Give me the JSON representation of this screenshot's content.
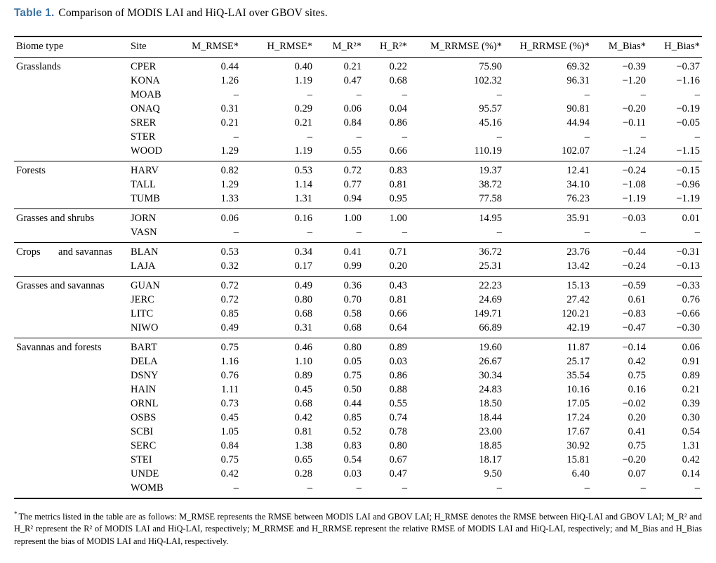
{
  "title": {
    "label": "Table 1.",
    "caption": "Comparison of MODIS LAI and HiQ-LAI over GBOV sites."
  },
  "colors": {
    "title_accent": "#3d73a3",
    "text": "#000000",
    "rule": "#000000",
    "background": "#ffffff"
  },
  "table": {
    "columns": [
      "Biome type",
      "Site",
      "M_RMSE*",
      "H_RMSE*",
      "M_R²*",
      "H_R²*",
      "M_RRMSE (%)*",
      "H_RRMSE (%)*",
      "M_Bias*",
      "H_Bias*"
    ],
    "missing_marker": "–",
    "sections": [
      {
        "biome": "Grasslands",
        "rows": [
          {
            "site": "CPER",
            "values": [
              "0.44",
              "0.40",
              "0.21",
              "0.22",
              "75.90",
              "69.32",
              "−0.39",
              "−0.37"
            ]
          },
          {
            "site": "KONA",
            "values": [
              "1.26",
              "1.19",
              "0.47",
              "0.68",
              "102.32",
              "96.31",
              "−1.20",
              "−1.16"
            ]
          },
          {
            "site": "MOAB",
            "values": [
              "–",
              "–",
              "–",
              "–",
              "–",
              "–",
              "–",
              "–"
            ]
          },
          {
            "site": "ONAQ",
            "values": [
              "0.31",
              "0.29",
              "0.06",
              "0.04",
              "95.57",
              "90.81",
              "−0.20",
              "−0.19"
            ]
          },
          {
            "site": "SRER",
            "values": [
              "0.21",
              "0.21",
              "0.84",
              "0.86",
              "45.16",
              "44.94",
              "−0.11",
              "−0.05"
            ]
          },
          {
            "site": "STER",
            "values": [
              "–",
              "–",
              "–",
              "–",
              "–",
              "–",
              "–",
              "–"
            ]
          },
          {
            "site": "WOOD",
            "values": [
              "1.29",
              "1.19",
              "0.55",
              "0.66",
              "110.19",
              "102.07",
              "−1.24",
              "−1.15"
            ]
          }
        ]
      },
      {
        "biome": "Forests",
        "rows": [
          {
            "site": "HARV",
            "values": [
              "0.82",
              "0.53",
              "0.72",
              "0.83",
              "19.37",
              "12.41",
              "−0.24",
              "−0.15"
            ]
          },
          {
            "site": "TALL",
            "values": [
              "1.29",
              "1.14",
              "0.77",
              "0.81",
              "38.72",
              "34.10",
              "−1.08",
              "−0.96"
            ]
          },
          {
            "site": "TUMB",
            "values": [
              "1.33",
              "1.31",
              "0.94",
              "0.95",
              "77.58",
              "76.23",
              "−1.19",
              "−1.19"
            ]
          }
        ]
      },
      {
        "biome": "Grasses and shrubs",
        "rows": [
          {
            "site": "JORN",
            "values": [
              "0.06",
              "0.16",
              "1.00",
              "1.00",
              "14.95",
              "35.91",
              "−0.03",
              "0.01"
            ]
          },
          {
            "site": "VASN",
            "values": [
              "–",
              "–",
              "–",
              "–",
              "–",
              "–",
              "–",
              "–"
            ]
          }
        ]
      },
      {
        "biome": "Crops       and savannas",
        "rows": [
          {
            "site": "BLAN",
            "values": [
              "0.53",
              "0.34",
              "0.41",
              "0.71",
              "36.72",
              "23.76",
              "−0.44",
              "−0.31"
            ]
          },
          {
            "site": "LAJA",
            "values": [
              "0.32",
              "0.17",
              "0.99",
              "0.20",
              "25.31",
              "13.42",
              "−0.24",
              "−0.13"
            ]
          }
        ]
      },
      {
        "biome": "Grasses and savannas",
        "rows": [
          {
            "site": "GUAN",
            "values": [
              "0.72",
              "0.49",
              "0.36",
              "0.43",
              "22.23",
              "15.13",
              "−0.59",
              "−0.33"
            ]
          },
          {
            "site": "JERC",
            "values": [
              "0.72",
              "0.80",
              "0.70",
              "0.81",
              "24.69",
              "27.42",
              "0.61",
              "0.76"
            ]
          },
          {
            "site": "LITC",
            "values": [
              "0.85",
              "0.68",
              "0.58",
              "0.66",
              "149.71",
              "120.21",
              "−0.83",
              "−0.66"
            ]
          },
          {
            "site": "NIWO",
            "values": [
              "0.49",
              "0.31",
              "0.68",
              "0.64",
              "66.89",
              "42.19",
              "−0.47",
              "−0.30"
            ]
          }
        ]
      },
      {
        "biome": "Savannas and forests",
        "rows": [
          {
            "site": "BART",
            "values": [
              "0.75",
              "0.46",
              "0.80",
              "0.89",
              "19.60",
              "11.87",
              "−0.14",
              "0.06"
            ]
          },
          {
            "site": "DELA",
            "values": [
              "1.16",
              "1.10",
              "0.05",
              "0.03",
              "26.67",
              "25.17",
              "0.42",
              "0.91"
            ]
          },
          {
            "site": "DSNY",
            "values": [
              "0.76",
              "0.89",
              "0.75",
              "0.86",
              "30.34",
              "35.54",
              "0.75",
              "0.89"
            ]
          },
          {
            "site": "HAIN",
            "values": [
              "1.11",
              "0.45",
              "0.50",
              "0.88",
              "24.83",
              "10.16",
              "0.16",
              "0.21"
            ]
          },
          {
            "site": "ORNL",
            "values": [
              "0.73",
              "0.68",
              "0.44",
              "0.55",
              "18.50",
              "17.05",
              "−0.02",
              "0.39"
            ]
          },
          {
            "site": "OSBS",
            "values": [
              "0.45",
              "0.42",
              "0.85",
              "0.74",
              "18.44",
              "17.24",
              "0.20",
              "0.30"
            ]
          },
          {
            "site": "SCBI",
            "values": [
              "1.05",
              "0.81",
              "0.52",
              "0.78",
              "23.00",
              "17.67",
              "0.41",
              "0.54"
            ]
          },
          {
            "site": "SERC",
            "values": [
              "0.84",
              "1.38",
              "0.83",
              "0.80",
              "18.85",
              "30.92",
              "0.75",
              "1.31"
            ]
          },
          {
            "site": "STEI",
            "values": [
              "0.75",
              "0.65",
              "0.54",
              "0.67",
              "18.17",
              "15.81",
              "−0.20",
              "0.42"
            ]
          },
          {
            "site": "UNDE",
            "values": [
              "0.42",
              "0.28",
              "0.03",
              "0.47",
              "9.50",
              "6.40",
              "0.07",
              "0.14"
            ]
          },
          {
            "site": "WOMB",
            "values": [
              "–",
              "–",
              "–",
              "–",
              "–",
              "–",
              "–",
              "–"
            ]
          }
        ]
      }
    ]
  },
  "footnote": {
    "marker": "*",
    "text": "The metrics listed in the table are as follows: M_RMSE represents the RMSE between MODIS LAI and GBOV LAI; H_RMSE denotes the RMSE between HiQ-LAI and GBOV LAI; M_R² and H_R² represent the R² of MODIS LAI and HiQ-LAI, respectively; M_RRMSE and H_RRMSE represent the relative RMSE of MODIS LAI and HiQ-LAI, respectively; and M_Bias and H_Bias represent the bias of MODIS LAI and HiQ-LAI, respectively."
  }
}
